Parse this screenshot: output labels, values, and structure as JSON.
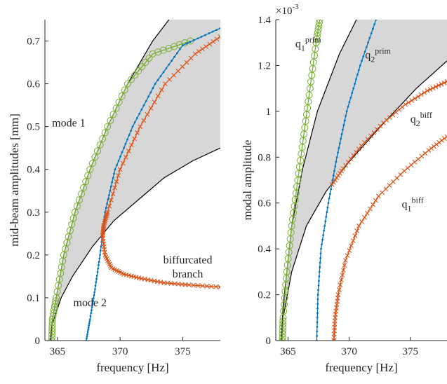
{
  "colors": {
    "band_fill": "#d7d7d7",
    "backbone": "#000000",
    "green": "#77ac30",
    "blue": "#0072bd",
    "orange": "#d95319",
    "axis": "#262626"
  },
  "chart_data": [
    {
      "type": "line",
      "xlabel": "frequency [Hz]",
      "ylabel": "mid-beam amplitudes [mm]",
      "xlim": [
        364.0,
        378.0
      ],
      "ylim": [
        0,
        0.75
      ],
      "xticks": [
        365,
        370,
        375
      ],
      "yticks": [
        0,
        0.1,
        0.2,
        0.3,
        0.4,
        0.5,
        0.6,
        0.7
      ],
      "xtick_labels": [
        "365",
        "370",
        "375"
      ],
      "ytick_labels": [
        "0",
        "0.1",
        "0.2",
        "0.3",
        "0.4",
        "0.5",
        "0.6",
        "0.7"
      ],
      "grid": false,
      "band": {
        "upper": [
          [
            364.45,
            0.0
          ],
          [
            364.6,
            0.05
          ],
          [
            364.9,
            0.1
          ],
          [
            365.5,
            0.2
          ],
          [
            366.4,
            0.3
          ],
          [
            367.6,
            0.4
          ],
          [
            369.0,
            0.5
          ],
          [
            370.6,
            0.6
          ],
          [
            372.6,
            0.7
          ],
          [
            373.9,
            0.75
          ],
          [
            375.8,
            0.75
          ],
          [
            378.0,
            0.75
          ]
        ],
        "lower": [
          [
            364.45,
            0.0
          ],
          [
            364.6,
            0.04
          ],
          [
            365.3,
            0.1
          ],
          [
            366.2,
            0.15
          ],
          [
            367.8,
            0.22
          ],
          [
            369.5,
            0.28
          ],
          [
            371.5,
            0.33
          ],
          [
            373.5,
            0.38
          ],
          [
            375.8,
            0.42
          ],
          [
            378.0,
            0.45
          ]
        ]
      },
      "backbones": [
        {
          "points": [
            [
              364.45,
              0.0
            ],
            [
              364.6,
              0.05
            ],
            [
              364.9,
              0.1
            ],
            [
              365.5,
              0.2
            ],
            [
              366.4,
              0.3
            ],
            [
              367.6,
              0.4
            ],
            [
              369.0,
              0.5
            ],
            [
              370.6,
              0.6
            ],
            [
              372.6,
              0.7
            ],
            [
              373.9,
              0.75
            ]
          ]
        },
        {
          "points": [
            [
              364.45,
              0.0
            ],
            [
              364.6,
              0.04
            ],
            [
              365.3,
              0.1
            ],
            [
              366.2,
              0.15
            ],
            [
              367.8,
              0.22
            ],
            [
              369.5,
              0.28
            ],
            [
              371.5,
              0.33
            ],
            [
              373.5,
              0.38
            ],
            [
              375.8,
              0.42
            ],
            [
              378.0,
              0.45
            ]
          ]
        }
      ],
      "series": [
        {
          "color_key": "green",
          "marker": "circle",
          "points": [
            [
              364.55,
              0.0
            ],
            [
              364.6,
              0.05
            ],
            [
              364.9,
              0.1
            ],
            [
              365.5,
              0.2
            ],
            [
              366.4,
              0.3
            ],
            [
              367.6,
              0.4
            ],
            [
              369.0,
              0.5
            ],
            [
              370.6,
              0.6
            ],
            [
              372.6,
              0.67
            ],
            [
              375.6,
              0.7
            ]
          ]
        },
        {
          "color_key": "blue",
          "marker": "dot",
          "points": [
            [
              367.3,
              0.0
            ],
            [
              367.6,
              0.05
            ],
            [
              368.0,
              0.12
            ],
            [
              368.4,
              0.2
            ],
            [
              368.8,
              0.3
            ],
            [
              369.6,
              0.4
            ],
            [
              371.0,
              0.5
            ],
            [
              372.8,
              0.6
            ],
            [
              375.0,
              0.69
            ],
            [
              378.0,
              0.73
            ]
          ]
        },
        {
          "color_key": "orange",
          "marker": "x",
          "points": [
            [
              368.6,
              0.245
            ],
            [
              368.7,
              0.27
            ],
            [
              369.0,
              0.3
            ],
            [
              370.0,
              0.4
            ],
            [
              371.6,
              0.5
            ],
            [
              373.6,
              0.6
            ],
            [
              376.0,
              0.67
            ],
            [
              378.0,
              0.71
            ]
          ]
        },
        {
          "color_key": "orange",
          "marker": "x",
          "points": [
            [
              368.6,
              0.245
            ],
            [
              368.8,
              0.2
            ],
            [
              369.3,
              0.17
            ],
            [
              370.3,
              0.155
            ],
            [
              371.7,
              0.145
            ],
            [
              373.5,
              0.135
            ],
            [
              375.5,
              0.13
            ],
            [
              378.0,
              0.125
            ]
          ]
        }
      ],
      "annotations": [
        {
          "lines": [
            "mode 1"
          ],
          "x": 365.9,
          "y": 0.5
        },
        {
          "lines": [
            "biffurcated",
            "branch"
          ],
          "x": 375.4,
          "y": 0.18
        },
        {
          "lines": [
            "mode 2"
          ],
          "x": 367.6,
          "y": 0.08
        }
      ]
    },
    {
      "type": "line",
      "xlabel": "frequency [Hz]",
      "ylabel": "modal amplitude",
      "exponent_label": "×10",
      "exponent_value": "-3",
      "xlim": [
        364.0,
        378.0
      ],
      "ylim": [
        0,
        1.4
      ],
      "xticks": [
        365,
        370,
        375
      ],
      "yticks": [
        0,
        0.2,
        0.4,
        0.6,
        0.8,
        1.0,
        1.2,
        1.4
      ],
      "xtick_labels": [
        "365",
        "370",
        "375"
      ],
      "ytick_labels": [
        "0",
        "0.2",
        "0.4",
        "0.6",
        "0.8",
        "1",
        "1.2",
        "1.4"
      ],
      "grid": false,
      "band": {
        "upper": [
          [
            364.45,
            0.0
          ],
          [
            364.6,
            0.15
          ],
          [
            365.3,
            0.5
          ],
          [
            366.2,
            0.75
          ],
          [
            367.4,
            1.0
          ],
          [
            369.2,
            1.25
          ],
          [
            370.6,
            1.4
          ],
          [
            378.0,
            1.4
          ]
        ],
        "lower": [
          [
            364.45,
            0.0
          ],
          [
            364.6,
            0.1
          ],
          [
            365.3,
            0.3
          ],
          [
            366.5,
            0.5
          ],
          [
            368.1,
            0.65
          ],
          [
            370.0,
            0.78
          ],
          [
            372.5,
            0.93
          ],
          [
            375.5,
            1.1
          ],
          [
            378.0,
            1.22
          ]
        ]
      },
      "backbones": [
        {
          "points": [
            [
              364.45,
              0.0
            ],
            [
              364.6,
              0.15
            ],
            [
              365.3,
              0.5
            ],
            [
              366.2,
              0.75
            ],
            [
              367.4,
              1.0
            ],
            [
              369.2,
              1.25
            ],
            [
              370.6,
              1.4
            ]
          ]
        },
        {
          "points": [
            [
              364.45,
              0.0
            ],
            [
              364.6,
              0.1
            ],
            [
              365.3,
              0.3
            ],
            [
              366.5,
              0.5
            ],
            [
              368.1,
              0.65
            ],
            [
              370.0,
              0.78
            ],
            [
              372.5,
              0.93
            ],
            [
              375.5,
              1.1
            ],
            [
              378.0,
              1.22
            ]
          ]
        }
      ],
      "series": [
        {
          "color_key": "green",
          "marker": "circle",
          "points": [
            [
              364.55,
              0.0
            ],
            [
              364.6,
              0.1
            ],
            [
              364.9,
              0.3
            ],
            [
              365.3,
              0.5
            ],
            [
              365.8,
              0.7
            ],
            [
              366.3,
              0.9
            ],
            [
              366.8,
              1.1
            ],
            [
              367.3,
              1.3
            ],
            [
              367.6,
              1.4
            ]
          ]
        },
        {
          "color_key": "blue",
          "marker": "dot",
          "points": [
            [
              367.35,
              0.0
            ],
            [
              367.45,
              0.2
            ],
            [
              367.7,
              0.4
            ],
            [
              368.3,
              0.6
            ],
            [
              369.0,
              0.8
            ],
            [
              369.8,
              1.0
            ],
            [
              370.9,
              1.2
            ],
            [
              372.2,
              1.4
            ]
          ]
        },
        {
          "color_key": "orange",
          "marker": "x",
          "points": [
            [
              368.6,
              0.68
            ],
            [
              369.5,
              0.75
            ],
            [
              371.0,
              0.85
            ],
            [
              372.8,
              0.95
            ],
            [
              374.6,
              1.03
            ],
            [
              376.4,
              1.09
            ],
            [
              378.0,
              1.13
            ]
          ]
        },
        {
          "color_key": "orange",
          "marker": "x",
          "points": [
            [
              368.75,
              0.0
            ],
            [
              368.85,
              0.1
            ],
            [
              369.1,
              0.2
            ],
            [
              369.7,
              0.35
            ],
            [
              370.8,
              0.5
            ],
            [
              372.4,
              0.63
            ],
            [
              374.5,
              0.74
            ],
            [
              376.5,
              0.83
            ],
            [
              378.0,
              0.89
            ]
          ]
        }
      ],
      "annotations": [
        {
          "base": "q",
          "sub": "1",
          "sup": "prim",
          "x": 365.6,
          "y": 1.28
        },
        {
          "base": "q",
          "sub": "2",
          "sup": "prim",
          "x": 371.3,
          "y": 1.23
        },
        {
          "base": "q",
          "sub": "2",
          "sup": "biff",
          "x": 375.0,
          "y": 0.95
        },
        {
          "base": "q",
          "sub": "1",
          "sup": "biff",
          "x": 374.3,
          "y": 0.58
        }
      ]
    }
  ]
}
